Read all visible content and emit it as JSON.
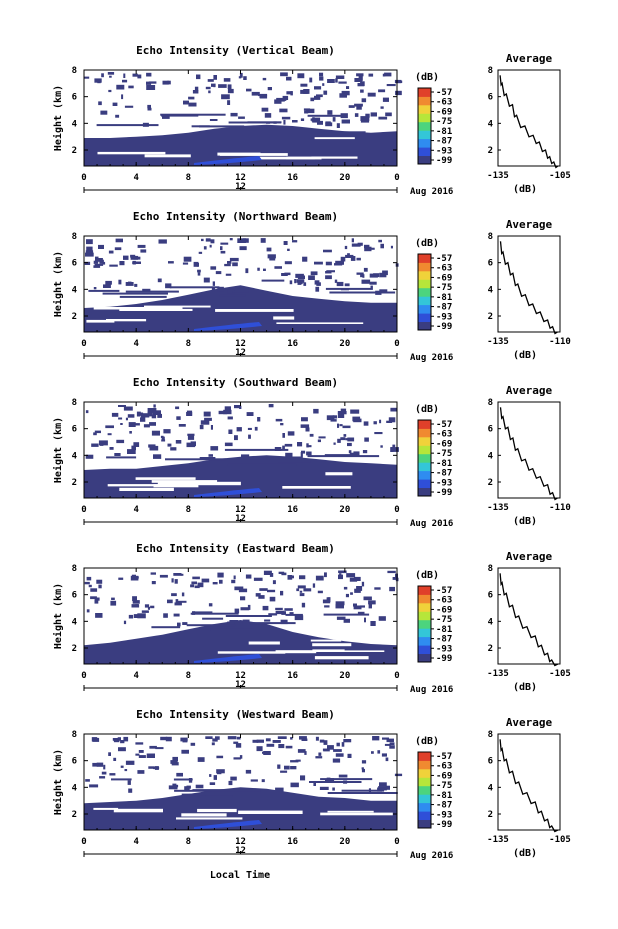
{
  "figure": {
    "xlabel": "Local Time",
    "date_label": "Aug 2016",
    "colorbar_unit": "(dB)",
    "colorbar_ticks": [
      "-57",
      "-63",
      "-69",
      "-75",
      "-81",
      "-87",
      "-93",
      "-99"
    ],
    "colormap": [
      "#3a3d80",
      "#2f4fd8",
      "#2f8cf0",
      "#33c6d8",
      "#4cd47e",
      "#b6e63a",
      "#f0d23a",
      "#f08a30",
      "#e0402a"
    ],
    "background_color": "#3a3d80"
  },
  "chart_data": [
    {
      "type": "heatmap",
      "title": "Echo Intensity (Vertical Beam)",
      "ylabel": "Height (km)",
      "x_ticks": [
        "0",
        "4",
        "8",
        "12",
        "16",
        "20",
        "0"
      ],
      "x_day_tick": "12",
      "y_ticks": [
        "2",
        "4",
        "6",
        "8"
      ],
      "xlim": [
        0,
        24
      ],
      "ylim": [
        0.8,
        8
      ],
      "solid_top_km": [
        2.9,
        2.9,
        3.0,
        3.1,
        3.3,
        3.6,
        3.8,
        3.9,
        3.8,
        3.6,
        3.4,
        3.3,
        3.4
      ],
      "profile": {
        "title": "Average",
        "xlabel": "(dB)",
        "xticks": [
          "-135",
          "-105"
        ],
        "xlim": [
          -135,
          -105
        ],
        "y_ticks": [
          "2",
          "4",
          "6",
          "8"
        ],
        "x": [
          -134,
          -133,
          -131,
          -128,
          -126,
          -122,
          -118,
          -115,
          -112,
          -110,
          -108,
          -106
        ],
        "y": [
          7.6,
          7.0,
          6.2,
          5.4,
          4.6,
          3.8,
          3.1,
          2.6,
          2.0,
          1.5,
          1.1,
          0.8
        ]
      }
    },
    {
      "type": "heatmap",
      "title": "Echo Intensity (Northward Beam)",
      "ylabel": "Height (km)",
      "x_ticks": [
        "0",
        "4",
        "8",
        "12",
        "16",
        "20",
        "0"
      ],
      "x_day_tick": "12",
      "y_ticks": [
        "2",
        "4",
        "6",
        "8"
      ],
      "xlim": [
        0,
        24
      ],
      "ylim": [
        0.8,
        8
      ],
      "solid_top_km": [
        2.6,
        2.7,
        2.9,
        3.2,
        3.6,
        4.0,
        4.3,
        3.9,
        3.5,
        3.3,
        3.1,
        3.0,
        3.0
      ],
      "profile": {
        "title": "Average",
        "xlabel": "(dB)",
        "xticks": [
          "-135",
          "-110"
        ],
        "xlim": [
          -135,
          -110
        ],
        "y_ticks": [
          "2",
          "4",
          "6",
          "8"
        ],
        "x": [
          -134,
          -133,
          -131,
          -129,
          -127,
          -124,
          -121,
          -118,
          -115,
          -113,
          -111
        ],
        "y": [
          7.6,
          6.8,
          6.0,
          5.2,
          4.4,
          3.6,
          2.9,
          2.3,
          1.7,
          1.2,
          0.8
        ]
      }
    },
    {
      "type": "heatmap",
      "title": "Echo Intensity (Southward Beam)",
      "ylabel": "Height (km)",
      "x_ticks": [
        "0",
        "4",
        "8",
        "12",
        "16",
        "20",
        "0"
      ],
      "x_day_tick": "12",
      "y_ticks": [
        "2",
        "4",
        "6",
        "8"
      ],
      "xlim": [
        0,
        24
      ],
      "ylim": [
        0.8,
        8
      ],
      "solid_top_km": [
        2.9,
        3.0,
        3.0,
        3.2,
        3.4,
        3.7,
        3.9,
        4.0,
        3.9,
        3.7,
        3.5,
        3.4,
        3.3
      ],
      "profile": {
        "title": "Average",
        "xlabel": "(dB)",
        "xticks": [
          "-135",
          "-110"
        ],
        "xlim": [
          -135,
          -110
        ],
        "y_ticks": [
          "2",
          "4",
          "6",
          "8"
        ],
        "x": [
          -134,
          -133,
          -131,
          -129,
          -127,
          -124,
          -121,
          -118,
          -115,
          -113,
          -111
        ],
        "y": [
          7.6,
          6.9,
          6.1,
          5.3,
          4.5,
          3.7,
          3.0,
          2.4,
          1.8,
          1.2,
          0.8
        ]
      }
    },
    {
      "type": "heatmap",
      "title": "Echo Intensity (Eastward Beam)",
      "ylabel": "Height (km)",
      "x_ticks": [
        "0",
        "4",
        "8",
        "12",
        "16",
        "20",
        "0"
      ],
      "x_day_tick": "12",
      "y_ticks": [
        "2",
        "4",
        "6",
        "8"
      ],
      "xlim": [
        0,
        24
      ],
      "ylim": [
        0.8,
        8
      ],
      "solid_top_km": [
        2.2,
        2.4,
        2.7,
        3.0,
        3.4,
        3.8,
        4.1,
        3.8,
        3.2,
        2.8,
        2.5,
        2.3,
        2.2
      ],
      "profile": {
        "title": "Average",
        "xlabel": "(dB)",
        "xticks": [
          "-135",
          "-105"
        ],
        "xlim": [
          -135,
          -105
        ],
        "y_ticks": [
          "2",
          "4",
          "6",
          "8"
        ],
        "x": [
          -134,
          -133,
          -131,
          -128,
          -125,
          -121,
          -117,
          -114,
          -111,
          -109,
          -106
        ],
        "y": [
          7.6,
          6.9,
          6.1,
          5.2,
          4.4,
          3.6,
          2.9,
          2.2,
          1.6,
          1.1,
          0.8
        ]
      }
    },
    {
      "type": "heatmap",
      "title": "Echo Intensity (Westward Beam)",
      "ylabel": "Height (km)",
      "x_ticks": [
        "0",
        "4",
        "8",
        "12",
        "16",
        "20",
        "0"
      ],
      "x_day_tick": "12",
      "y_ticks": [
        "2",
        "4",
        "6",
        "8"
      ],
      "xlim": [
        0,
        24
      ],
      "ylim": [
        0.8,
        8
      ],
      "solid_top_km": [
        2.8,
        2.9,
        3.0,
        3.2,
        3.5,
        3.8,
        4.0,
        3.9,
        3.6,
        3.3,
        3.2,
        3.0,
        3.0
      ],
      "profile": {
        "title": "Average",
        "xlabel": "(dB)",
        "xticks": [
          "-135",
          "-105"
        ],
        "xlim": [
          -135,
          -105
        ],
        "y_ticks": [
          "2",
          "4",
          "6",
          "8"
        ],
        "x": [
          -134,
          -133,
          -131,
          -128,
          -125,
          -121,
          -117,
          -114,
          -111,
          -109,
          -106
        ],
        "y": [
          7.6,
          6.9,
          6.1,
          5.2,
          4.4,
          3.6,
          2.9,
          2.2,
          1.6,
          1.1,
          0.8
        ]
      }
    }
  ]
}
